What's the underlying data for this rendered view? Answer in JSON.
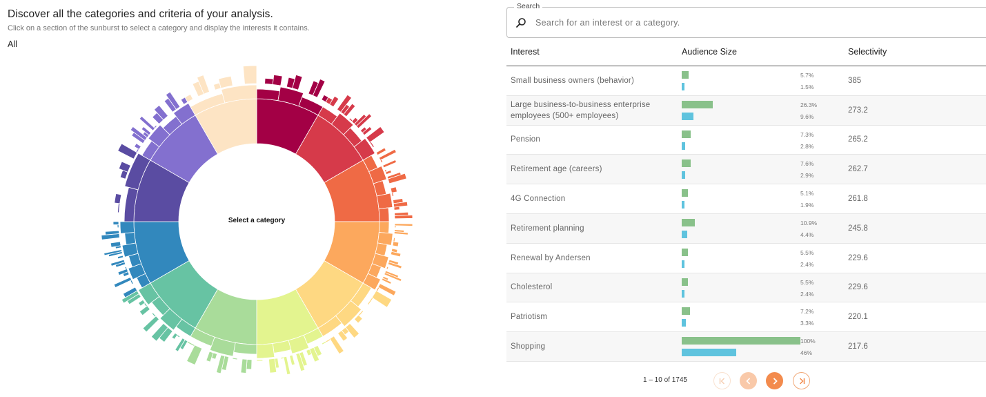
{
  "left": {
    "title": "Discover all the categories and criteria of your analysis.",
    "subtitle": "Click on a section of the sunburst to select a category and display the interests it contains.",
    "breadcrumb": "All",
    "center_label": "Select a category"
  },
  "search": {
    "legend": "Search",
    "placeholder": "Search for an interest or a category.",
    "value": "",
    "icon": "search-icon"
  },
  "table": {
    "columns": {
      "interest": "Interest",
      "audience": "Audience Size",
      "selectivity": "Selectivity"
    },
    "colors": {
      "primary_bar": "#89c18a",
      "secondary_bar": "#5fc3de"
    },
    "rows": [
      {
        "interest": "Small business owners (behavior)",
        "p1": "5.7%",
        "v1": 5.7,
        "p2": "1.5%",
        "v2": 1.5,
        "selectivity": "385"
      },
      {
        "interest": "Large business-to-business enterprise employees (500+ employees)",
        "p1": "26.3%",
        "v1": 26.3,
        "p2": "9.6%",
        "v2": 9.6,
        "selectivity": "273.2"
      },
      {
        "interest": "Pension",
        "p1": "7.3%",
        "v1": 7.3,
        "p2": "2.8%",
        "v2": 2.8,
        "selectivity": "265.2"
      },
      {
        "interest": "Retirement age (careers)",
        "p1": "7.6%",
        "v1": 7.6,
        "p2": "2.9%",
        "v2": 2.9,
        "selectivity": "262.7"
      },
      {
        "interest": "4G Connection",
        "p1": "5.1%",
        "v1": 5.1,
        "p2": "1.9%",
        "v2": 1.9,
        "selectivity": "261.8"
      },
      {
        "interest": "Retirement planning",
        "p1": "10.9%",
        "v1": 10.9,
        "p2": "4.4%",
        "v2": 4.4,
        "selectivity": "245.8"
      },
      {
        "interest": "Renewal by Andersen",
        "p1": "5.5%",
        "v1": 5.5,
        "p2": "2.4%",
        "v2": 2.4,
        "selectivity": "229.6"
      },
      {
        "interest": "Cholesterol",
        "p1": "5.5%",
        "v1": 5.5,
        "p2": "2.4%",
        "v2": 2.4,
        "selectivity": "229.6"
      },
      {
        "interest": "Patriotism",
        "p1": "7.2%",
        "v1": 7.2,
        "p2": "3.3%",
        "v2": 3.3,
        "selectivity": "220.1"
      },
      {
        "interest": "Shopping",
        "p1": "100%",
        "v1": 100,
        "p2": "46%",
        "v2": 46,
        "selectivity": "217.6"
      }
    ]
  },
  "pagination": {
    "range_text": "1 – 10 of 1745",
    "accent_color": "#f38b4d",
    "buttons": [
      "first-page-icon",
      "prev-page-icon",
      "next-page-icon",
      "last-page-icon"
    ]
  }
}
